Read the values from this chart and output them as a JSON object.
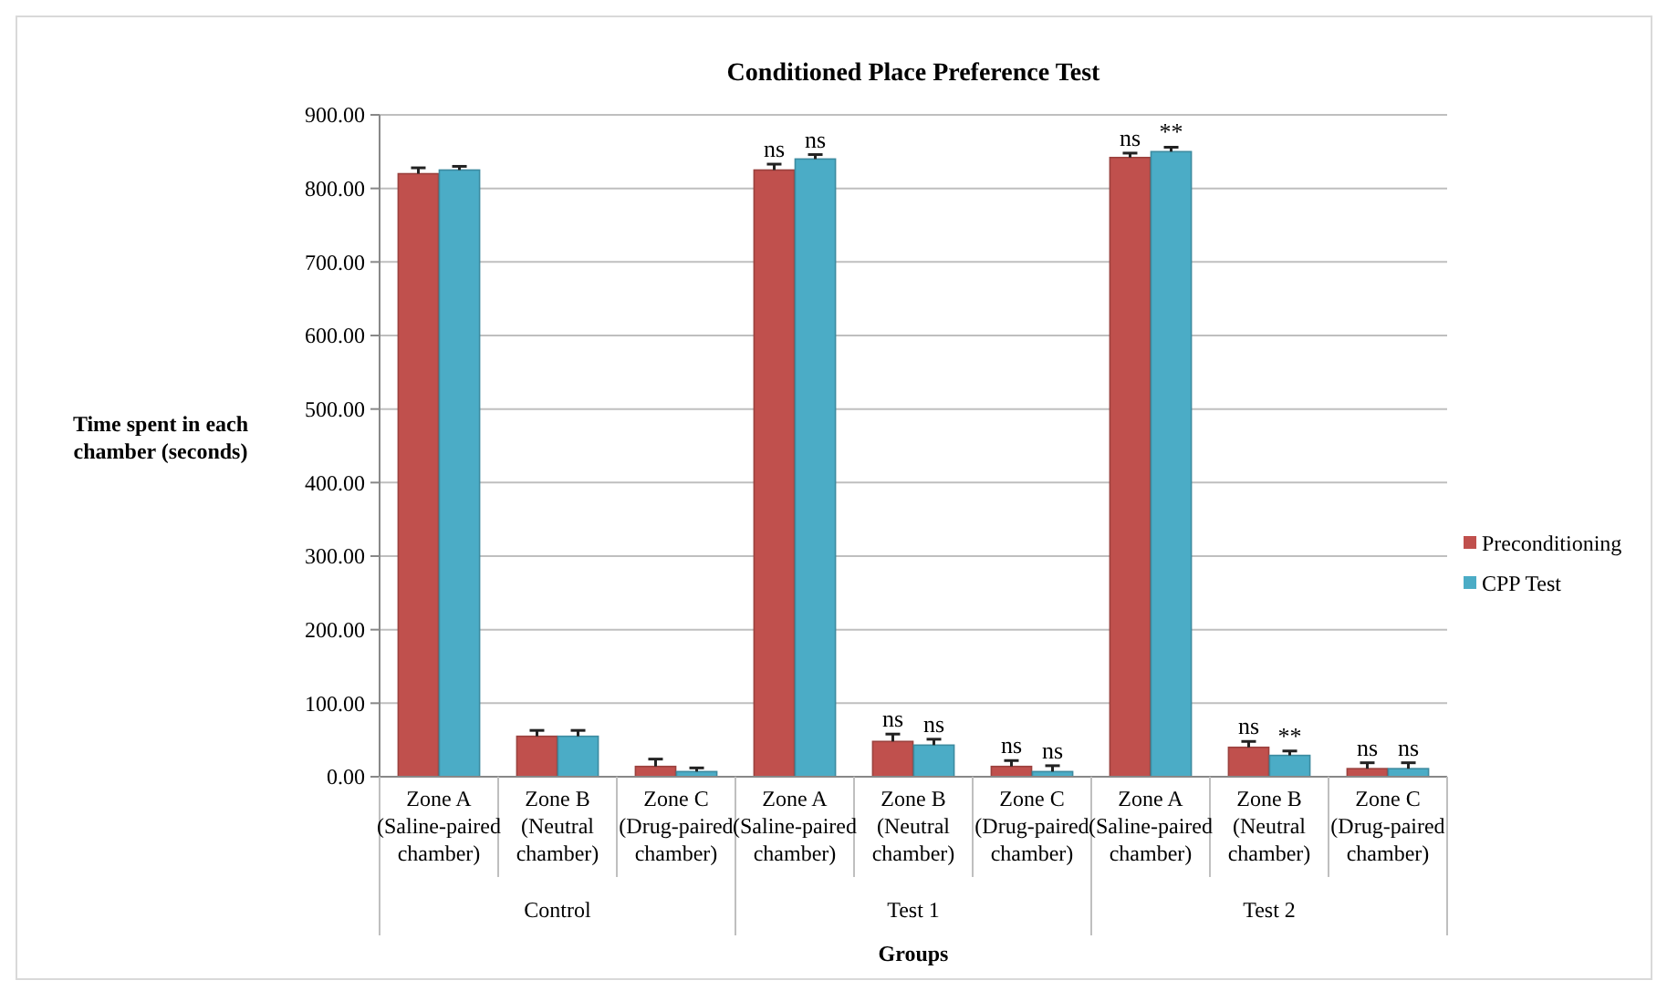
{
  "chart_data": {
    "type": "bar",
    "title": "Conditioned Place Preference Test",
    "xlabel": "Groups",
    "ylabel": "Time spent in each chamber (seconds)",
    "categories": [
      "Zone A (Saline-paired chamber)",
      "Zone B (Neutral chamber)",
      "Zone C (Drug-paired chamber)",
      "Zone A (Saline-paired chamber)",
      "Zone B (Neutral chamber)",
      "Zone C (Drug-paired chamber)",
      "Zone A (Saline-paired chamber)",
      "Zone B (Neutral chamber)",
      "Zone C (Drug-paired chamber)"
    ],
    "series": [
      {
        "name": "Preconditioning",
        "color": "#c0504d",
        "values": [
          820,
          55,
          14,
          825,
          48,
          14,
          842,
          40,
          11
        ],
        "errors": [
          [
            820,
            828
          ],
          [
            55,
            63
          ],
          [
            14,
            24
          ],
          [
            825,
            833
          ],
          [
            48,
            58
          ],
          [
            14,
            22
          ],
          [
            842,
            848
          ],
          [
            40,
            48
          ],
          [
            11,
            19
          ]
        ],
        "value_labels": [
          null,
          null,
          null,
          "ns",
          "ns",
          "ns",
          "ns",
          "ns",
          "ns"
        ]
      },
      {
        "name": "CPP Test",
        "color": "#4bacc6",
        "values": [
          825,
          55,
          7,
          840,
          43,
          7,
          850,
          29,
          11
        ],
        "errors": [
          [
            825,
            830
          ],
          [
            55,
            63
          ],
          [
            7,
            12
          ],
          [
            840,
            846
          ],
          [
            43,
            51
          ],
          [
            7,
            15
          ],
          [
            850,
            856
          ],
          [
            29,
            35
          ],
          [
            11,
            19
          ]
        ],
        "value_labels": [
          null,
          null,
          null,
          "ns",
          "ns",
          "ns",
          "**",
          "**",
          "ns"
        ]
      }
    ],
    "annotations": [
      "Control",
      "Test 1",
      "Test 2"
    ],
    "ylim": [
      0,
      900
    ],
    "yticks": [
      {
        "value": 0,
        "label": "0.00"
      },
      {
        "value": 100,
        "label": "100.00"
      },
      {
        "value": 200,
        "label": "200.00"
      },
      {
        "value": 300,
        "label": "300.00"
      },
      {
        "value": 400,
        "label": "400.00"
      },
      {
        "value": 500,
        "label": "500.00"
      },
      {
        "value": 600,
        "label": "600.00"
      },
      {
        "value": 700,
        "label": "700.00"
      },
      {
        "value": 800,
        "label": "800.00"
      },
      {
        "value": 900,
        "label": "900.00"
      }
    ],
    "grid": "y",
    "legend": "right"
  }
}
